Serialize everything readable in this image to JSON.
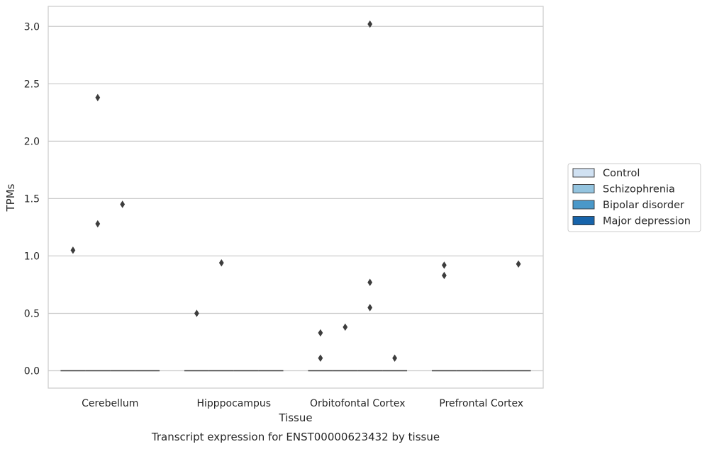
{
  "chart_data": {
    "type": "box",
    "title": "Transcript expression for ENST00000623432 by tissue",
    "xlabel": "Tissue",
    "ylabel": "TPMs",
    "categories": [
      "Cerebellum",
      "Hipppocampus",
      "Orbitofontal Cortex",
      "Prefrontal Cortex"
    ],
    "hue_order": [
      "Control",
      "Schizophrenia",
      "Bipolar disorder",
      "Major depression"
    ],
    "colors": [
      "#d0e1f2",
      "#94c4df",
      "#4a98c9",
      "#1764ab"
    ],
    "median_color": "#3d3d3d",
    "ylim": [
      -0.15,
      3.17
    ],
    "yticks": [
      0.0,
      0.5,
      1.0,
      1.5,
      2.0,
      2.5,
      3.0
    ],
    "ytick_labels": [
      "0.0",
      "0.5",
      "1.0",
      "1.5",
      "2.0",
      "2.5",
      "3.0"
    ],
    "grid": true,
    "legend_position": "right",
    "series": [
      {
        "name": "Control",
        "medians": [
          0,
          0,
          0,
          0
        ],
        "outliers": [
          [
            1.05
          ],
          [
            0.5
          ],
          [
            0.33,
            0.11
          ],
          [
            0.92,
            0.83
          ]
        ]
      },
      {
        "name": "Schizophrenia",
        "medians": [
          0,
          0,
          0,
          0
        ],
        "outliers": [
          [
            2.38,
            1.28
          ],
          [
            0.94
          ],
          [
            0.38
          ],
          []
        ]
      },
      {
        "name": "Bipolar disorder",
        "medians": [
          0,
          0,
          0,
          0
        ],
        "outliers": [
          [
            1.45
          ],
          [],
          [
            3.02,
            0.77,
            0.55
          ],
          []
        ]
      },
      {
        "name": "Major depression",
        "medians": [
          0,
          0,
          0,
          0
        ],
        "outliers": [
          [],
          [],
          [
            0.11
          ],
          [
            0.93
          ]
        ]
      }
    ]
  }
}
